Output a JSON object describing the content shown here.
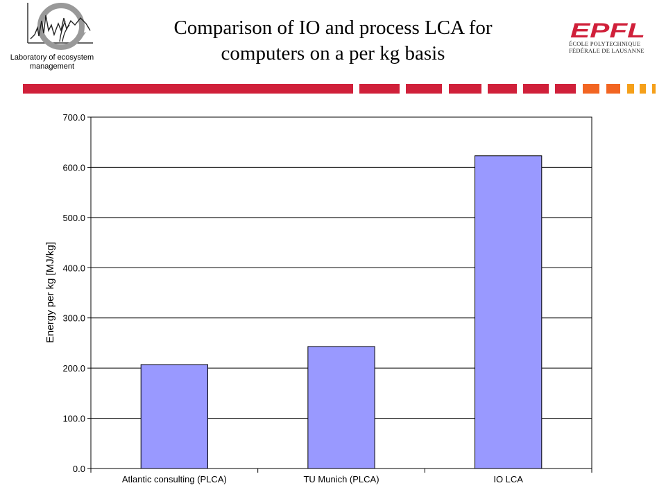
{
  "header": {
    "lab_name": "Laboratory of ecosystem management",
    "title_line1": "Comparison of IO and process LCA for",
    "title_line2": "computers on a per kg basis",
    "epfl_wordmark": "EPFL",
    "epfl_line1": "ÉCOLE POLYTECHNIQUE",
    "epfl_line2": "FÉDÉRALE DE LAUSANNE"
  },
  "colors": {
    "stripe_red": "#d0203a",
    "stripe_orange": "#f26522",
    "stripe_amber": "#f5a01a",
    "bar_fill": "#9999ff",
    "epfl_red": "#d0203a"
  },
  "chart_data": {
    "type": "bar",
    "categories": [
      "Atlantic consulting (PLCA)",
      "TU Munich (PLCA)",
      "IO LCA"
    ],
    "values": [
      207.0,
      243.0,
      623.0
    ],
    "title": "",
    "xlabel": "",
    "ylabel": "Energy per kg [MJ/kg]",
    "ylim": [
      0,
      700
    ],
    "yticks": [
      "0.0",
      "100.0",
      "200.0",
      "300.0",
      "400.0",
      "500.0",
      "600.0",
      "700.0"
    ],
    "grid": "horizontal",
    "legend": "none"
  }
}
